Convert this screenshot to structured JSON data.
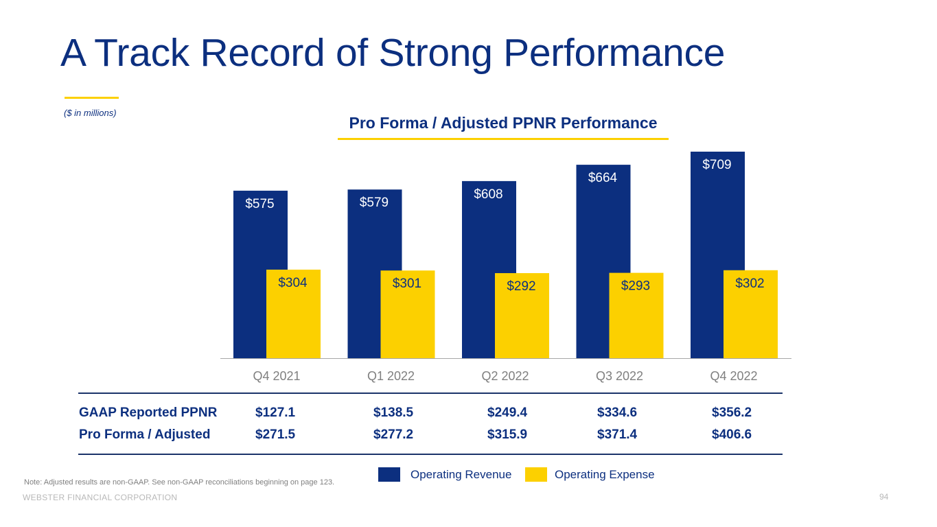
{
  "title": "A Track Record of Strong Performance",
  "units_note": "($ in millions)",
  "chart_data": {
    "type": "bar",
    "title": "Pro Forma / Adjusted PPNR Performance",
    "categories": [
      "Q4 2021",
      "Q1 2022",
      "Q2 2022",
      "Q3 2022",
      "Q4 2022"
    ],
    "series": [
      {
        "name": "Operating Revenue",
        "values": [
          575,
          579,
          608,
          664,
          709
        ],
        "labels": [
          "$575",
          "$579",
          "$608",
          "$664",
          "$709"
        ]
      },
      {
        "name": "Operating Expense",
        "values": [
          304,
          301,
          292,
          293,
          302
        ],
        "labels": [
          "$304",
          "$301",
          "$292",
          "$293",
          "$302"
        ]
      }
    ],
    "xlabel": "",
    "ylabel": "",
    "ylim": [
      0,
      709
    ],
    "grid": false,
    "legend": "bottom"
  },
  "table": {
    "rows": [
      {
        "label": "GAAP Reported PPNR",
        "values": [
          "$127.1",
          "$138.5",
          "$249.4",
          "$334.6",
          "$356.2"
        ]
      },
      {
        "label": "Pro Forma / Adjusted",
        "values": [
          "$271.5",
          "$277.2",
          "$315.9",
          "$371.4",
          "$406.6"
        ]
      }
    ]
  },
  "legend": [
    {
      "label": "Operating Revenue",
      "color": "#0c2f7f"
    },
    {
      "label": "Operating Expense",
      "color": "#fcd000"
    }
  ],
  "colors": {
    "revenue": "#0c2f7f",
    "expense": "#fcd000",
    "revenue_label": "#ffffff",
    "expense_label": "#0c2f7f"
  },
  "note": "Note: Adjusted results are non-GAAP. See non-GAAP reconciliations beginning on page 123.",
  "footer": "WEBSTER FINANCIAL CORPORATION",
  "page_number": "94"
}
